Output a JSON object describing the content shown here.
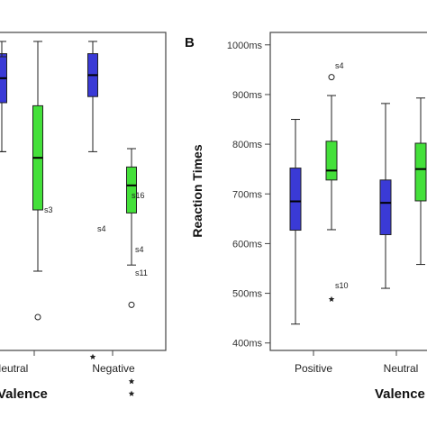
{
  "chart_data": [
    {
      "type": "box",
      "panel_label": "",
      "xlabel": "Valence",
      "xlabel_prefix_visible": "",
      "ylabel": "",
      "categories": [
        "Neutral",
        "Negative"
      ],
      "groups": [
        {
          "category": "",
          "series_color": "#3a3ad6",
          "box": {
            "q1": 0.8,
            "median": 0.88,
            "q3": 0.95,
            "whisker_low": 0.64,
            "whisker_high": 1.0
          },
          "outliers": []
        },
        {
          "category": "",
          "series_color": "#44e03a",
          "box": {
            "q1": 0.45,
            "median": 0.62,
            "q3": 0.79,
            "whisker_low": 0.25,
            "whisker_high": 1.0
          },
          "outliers": []
        },
        {
          "category": "Neutral",
          "series_color": "#3a3ad6",
          "box": {
            "q1": 0.8,
            "median": 0.88,
            "q3": 0.96,
            "whisker_low": 0.64,
            "whisker_high": 1.0
          },
          "outliers": []
        },
        {
          "category": "Neutral",
          "series_color": "#44e03a",
          "box": {
            "q1": 0.45,
            "median": 0.62,
            "q3": 0.79,
            "whisker_low": 0.25,
            "whisker_high": 1.0
          },
          "outliers": [
            {
              "value": 0.1,
              "label": "s3",
              "marker": "circle"
            }
          ]
        },
        {
          "category": "Negative",
          "series_color": "#3a3ad6",
          "box": {
            "q1": 0.82,
            "median": 0.89,
            "q3": 0.96,
            "whisker_low": 0.64,
            "whisker_high": 1.0
          },
          "outliers": [
            {
              "value": -0.03,
              "label": "s4",
              "marker": "star"
            }
          ]
        },
        {
          "category": "Negative",
          "series_color": "#44e03a",
          "box": {
            "q1": 0.44,
            "median": 0.53,
            "q3": 0.59,
            "whisker_low": 0.27,
            "whisker_high": 0.65
          },
          "outliers": [
            {
              "value": 0.14,
              "label": "s16",
              "marker": "circle"
            },
            {
              "value": -0.11,
              "label": "s4",
              "marker": "star"
            },
            {
              "value": -0.15,
              "label": "s11",
              "marker": "star"
            }
          ]
        }
      ],
      "visible_x_labels": [
        "Neutral",
        "Negative"
      ],
      "axis_title_text": "Valence"
    },
    {
      "type": "box",
      "panel_label": "B",
      "ylabel": "Reaction Times",
      "xlabel": "Valence",
      "y_ticks": [
        "1000ms",
        "900ms",
        "800ms",
        "700ms",
        "600ms",
        "500ms",
        "400ms"
      ],
      "y_tick_values": [
        1000,
        900,
        800,
        700,
        600,
        500,
        400
      ],
      "ylim": [
        385,
        1025
      ],
      "categories": [
        "Positive",
        "Neutral"
      ],
      "groups": [
        {
          "category": "Positive",
          "series_color": "#3a3ad6",
          "box": {
            "q1": 627,
            "median": 685,
            "q3": 752,
            "whisker_low": 438,
            "whisker_high": 850
          },
          "outliers": []
        },
        {
          "category": "Positive",
          "series_color": "#44e03a",
          "box": {
            "q1": 728,
            "median": 747,
            "q3": 806,
            "whisker_low": 628,
            "whisker_high": 898
          },
          "outliers": [
            {
              "value": 935,
              "label": "s4",
              "marker": "circle"
            },
            {
              "value": 488,
              "label": "s10",
              "marker": "star"
            }
          ]
        },
        {
          "category": "Neutral",
          "series_color": "#3a3ad6",
          "box": {
            "q1": 618,
            "median": 682,
            "q3": 728,
            "whisker_low": 510,
            "whisker_high": 882
          },
          "outliers": []
        },
        {
          "category": "Neutral",
          "series_color": "#44e03a",
          "box": {
            "q1": 686,
            "median": 750,
            "q3": 802,
            "whisker_low": 558,
            "whisker_high": 893
          },
          "outliers": []
        }
      ]
    }
  ],
  "text": {
    "left_axis_title": "Valence",
    "left_cat_1": "Neutral",
    "left_cat_2": "Negative",
    "left_lbl_s3": "s3",
    "left_lbl_s16": "s16",
    "left_lbl_s4a": "s4",
    "left_lbl_s4b": "s4",
    "left_lbl_s11": "s11",
    "right_panel_label": "B",
    "right_ylabel": "Reaction Times",
    "right_axis_title": "Valence",
    "right_cat_1": "Positive",
    "right_cat_2": "Neutral",
    "right_lbl_s4": "s4",
    "right_lbl_s10": "s10",
    "yt0": "1000ms",
    "yt1": "900ms",
    "yt2": "800ms",
    "yt3": "700ms",
    "yt4": "600ms",
    "yt5": "500ms",
    "yt6": "400ms"
  },
  "colors": {
    "blue": "#3a3ad6",
    "green": "#44e03a",
    "frame": "#000000",
    "plot_bg": "#ffffff"
  }
}
